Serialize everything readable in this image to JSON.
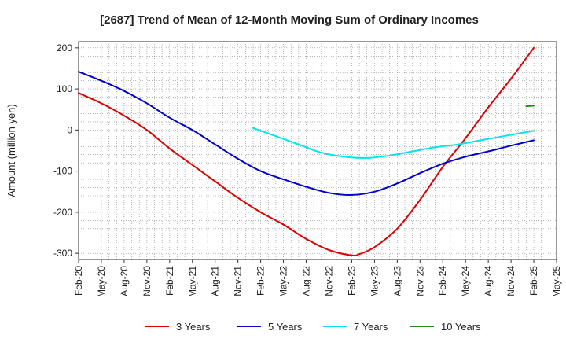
{
  "chart_data": {
    "type": "line",
    "title": "[2687]  Trend of Mean of 12-Month Moving Sum of Ordinary Incomes",
    "xlabel": "",
    "ylabel": "Amount (million yen)",
    "ylim": [
      -315,
      215
    ],
    "yticks": [
      200,
      100,
      0,
      -100,
      -200,
      -300
    ],
    "ytick_labels": [
      "200",
      "100",
      "0",
      "-100",
      "-200",
      "-300"
    ],
    "xlim": [
      0,
      63
    ],
    "categories": [
      "Feb-20",
      "May-20",
      "Aug-20",
      "Nov-20",
      "Feb-21",
      "May-21",
      "Aug-21",
      "Nov-21",
      "Feb-22",
      "May-22",
      "Aug-22",
      "Nov-22",
      "Feb-23",
      "May-23",
      "Aug-23",
      "Nov-23",
      "Feb-24",
      "May-24",
      "Aug-24",
      "Nov-24",
      "Feb-25",
      "May-25"
    ],
    "series": [
      {
        "name": "3 Years",
        "color": "#dd0000",
        "x": [
          0,
          3,
          6,
          9,
          12,
          15,
          18,
          21,
          24,
          27,
          30,
          33,
          36,
          37,
          39,
          42,
          45,
          48,
          51,
          54,
          57,
          60
        ],
        "values": [
          90,
          65,
          35,
          0,
          -45,
          -85,
          -125,
          -165,
          -200,
          -230,
          -265,
          -292,
          -305,
          -302,
          -285,
          -240,
          -170,
          -90,
          -20,
          55,
          125,
          200
        ]
      },
      {
        "name": "5 Years",
        "color": "#0000cc",
        "x": [
          0,
          3,
          6,
          9,
          12,
          15,
          18,
          21,
          24,
          27,
          30,
          33,
          36,
          39,
          42,
          45,
          48,
          51,
          54,
          57,
          60
        ],
        "values": [
          142,
          120,
          95,
          65,
          30,
          0,
          -35,
          -70,
          -100,
          -120,
          -138,
          -153,
          -158,
          -150,
          -130,
          -105,
          -82,
          -65,
          -52,
          -38,
          -25
        ]
      },
      {
        "name": "7 Years",
        "color": "#00e5ee",
        "x": [
          23,
          26,
          29,
          32,
          35,
          38,
          41,
          44,
          47,
          50,
          53,
          56,
          59,
          60
        ],
        "values": [
          5,
          -15,
          -35,
          -55,
          -65,
          -68,
          -62,
          -52,
          -42,
          -35,
          -25,
          -15,
          -5,
          -2
        ]
      },
      {
        "name": "10 Years",
        "color": "#228b22",
        "x": [
          59,
          60
        ],
        "values": [
          58,
          59
        ]
      }
    ],
    "legend_position": "bottom",
    "grid": true
  }
}
